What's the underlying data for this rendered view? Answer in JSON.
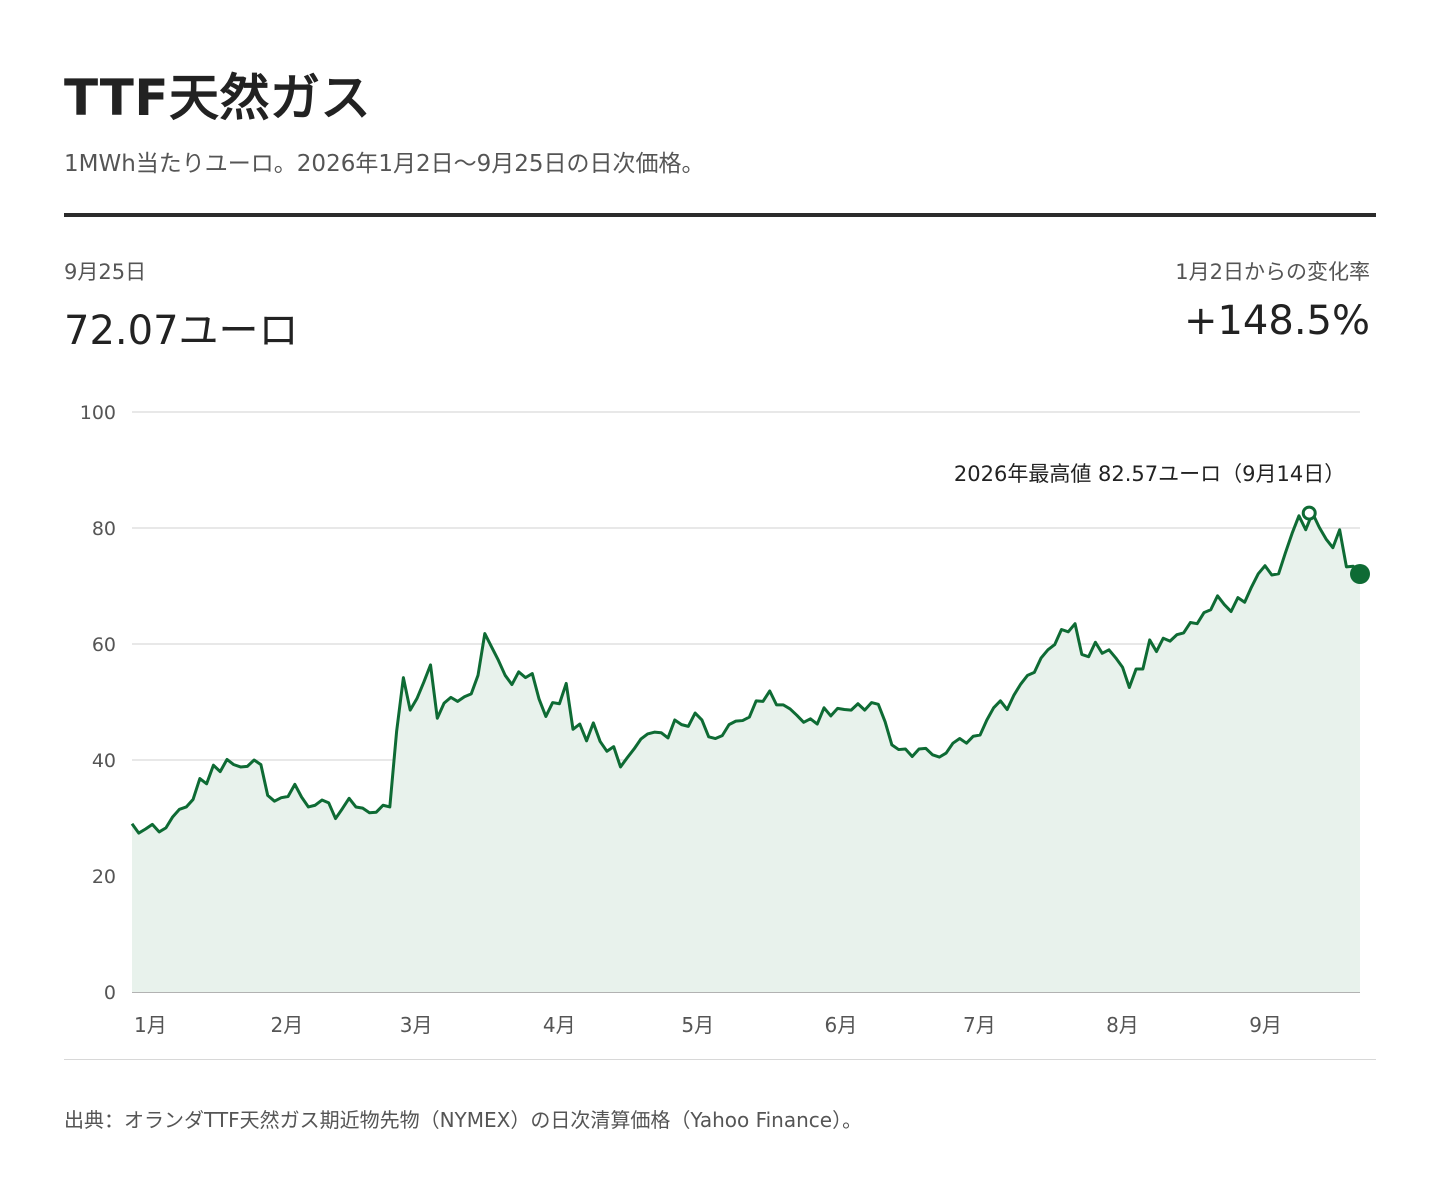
{
  "header": {
    "title": "TTF天然ガス",
    "subtitle": "1MWh当たりユーロ。2026年1月2日〜9月25日の日次価格。"
  },
  "stats": {
    "latest_label": "9月25日",
    "latest_value": "72.07ユーロ",
    "change_label": "1月2日からの変化率",
    "change_value": "+148.5%"
  },
  "source": "出典：オランダTTF天然ガス期近物先物（NYMEX）の日次清算価格（Yahoo Finance）。",
  "colors": {
    "line": "#0e6b34",
    "area": "#e8f2ec",
    "grid": "#d9d9d9",
    "axis": "#999999"
  },
  "chart_data": {
    "type": "area",
    "title": "TTF天然ガス",
    "x_range": [
      "2026-01-02",
      "2026-09-25"
    ],
    "ylim": [
      0,
      100
    ],
    "y_ticks": [
      0,
      20,
      40,
      60,
      80,
      100
    ],
    "x_ticks": [
      "1月",
      "2月",
      "3月",
      "4月",
      "5月",
      "6月",
      "7月",
      "8月",
      "9月"
    ],
    "grid": true,
    "annotation": {
      "text": "2026年最高値 82.57ユーロ（9月14日）",
      "date": "2026-09-14",
      "value": 82.57
    },
    "last_point": {
      "date": "2026-09-25",
      "value": 72.07
    },
    "series": [
      {
        "values": [
          29.0,
          27.4,
          28.1,
          28.9,
          27.6,
          28.3,
          30.2,
          31.5,
          31.9,
          33.2,
          36.8,
          35.9,
          39.1,
          38.0,
          40.1,
          39.2,
          38.8,
          38.9,
          40.0,
          39.2,
          33.9,
          32.9,
          33.5,
          33.7,
          35.8,
          33.6,
          31.9,
          32.2,
          33.1,
          32.6,
          29.9,
          31.6,
          33.4,
          31.9,
          31.7,
          30.9,
          31.0,
          32.2,
          31.9,
          44.9,
          54.2,
          48.6,
          50.6,
          53.4,
          56.4,
          47.2,
          49.8,
          50.8,
          50.1,
          50.9,
          51.4,
          54.6,
          61.8,
          59.5,
          57.2,
          54.6,
          53.0,
          55.2,
          54.2,
          54.9,
          50.5,
          47.5,
          49.9,
          49.7,
          53.2,
          45.3,
          46.2,
          43.3,
          46.4,
          43.2,
          41.5,
          42.3,
          38.8,
          40.4,
          41.9,
          43.6,
          44.5,
          44.8,
          44.7,
          43.8,
          46.9,
          46.1,
          45.8,
          48.1,
          46.9,
          44.0,
          43.7,
          44.2,
          46.1,
          46.7,
          46.8,
          47.4,
          50.2,
          50.1,
          51.9,
          49.5,
          49.5,
          48.8,
          47.7,
          46.5,
          47.1,
          46.2,
          49.0,
          47.6,
          48.9,
          48.7,
          48.6,
          49.7,
          48.6,
          49.9,
          49.6,
          46.6,
          42.6,
          41.8,
          41.9,
          40.6,
          41.9,
          42.0,
          40.9,
          40.5,
          41.2,
          42.9,
          43.7,
          42.9,
          44.1,
          44.3,
          46.9,
          49.0,
          50.2,
          48.7,
          51.2,
          53.1,
          54.6,
          55.1,
          57.6,
          59.0,
          59.9,
          62.5,
          62.1,
          63.5,
          58.2,
          57.8,
          60.3,
          58.4,
          59.0,
          57.6,
          56.0,
          52.5,
          55.7,
          55.7,
          60.7,
          58.7,
          61.0,
          60.5,
          61.6,
          61.9,
          63.7,
          63.5,
          65.4,
          65.9,
          68.3,
          66.8,
          65.6,
          68.0,
          67.2,
          69.8,
          72.1,
          73.5,
          71.9,
          72.1,
          75.7,
          79.1,
          82.1,
          79.7,
          82.57,
          80.1,
          78.1,
          76.6,
          79.7,
          73.3,
          73.4,
          72.07
        ]
      }
    ]
  }
}
